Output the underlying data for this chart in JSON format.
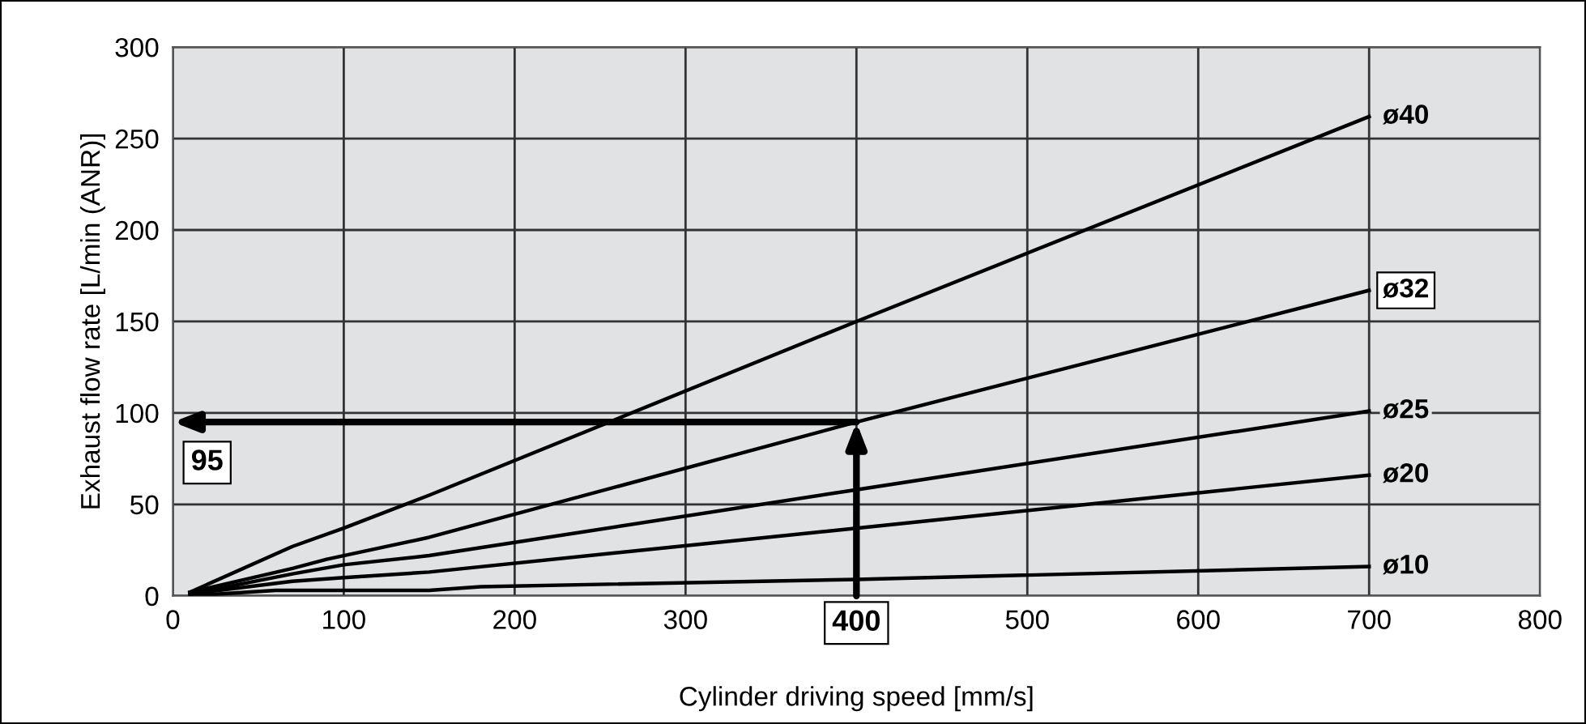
{
  "chart_data": {
    "type": "line",
    "xlabel": "Cylinder driving speed [mm/s]",
    "ylabel": "Exhaust flow rate [L/min (ANR)]",
    "xlim": [
      0,
      800
    ],
    "ylim": [
      0,
      300
    ],
    "xticks": [
      0,
      100,
      200,
      300,
      400,
      500,
      600,
      700,
      800
    ],
    "yticks": [
      0,
      50,
      100,
      150,
      200,
      250,
      300
    ],
    "grid": true,
    "legend": false,
    "marker": "none",
    "line_style": "solid",
    "series": [
      {
        "name": "ø40",
        "color": "#000000",
        "x": [
          10,
          70,
          100,
          150,
          400,
          700
        ],
        "values": [
          2,
          27,
          37,
          55,
          150,
          262
        ]
      },
      {
        "name": "ø32",
        "color": "#000000",
        "x": [
          10,
          70,
          90,
          150,
          400,
          700
        ],
        "values": [
          2,
          15,
          20,
          32,
          95,
          167
        ]
      },
      {
        "name": "ø25",
        "color": "#000000",
        "x": [
          10,
          70,
          100,
          150,
          400,
          700
        ],
        "values": [
          1,
          12,
          17,
          22,
          58,
          101
        ]
      },
      {
        "name": "ø20",
        "color": "#000000",
        "x": [
          10,
          70,
          100,
          150,
          400,
          700
        ],
        "values": [
          1,
          8,
          10,
          13,
          37,
          66
        ]
      },
      {
        "name": "ø10",
        "color": "#000000",
        "x": [
          10,
          60,
          150,
          180,
          400,
          700
        ],
        "values": [
          0,
          3,
          3,
          5,
          9,
          16
        ]
      }
    ],
    "annotations": [
      {
        "text": "95",
        "x": 400,
        "y": 95
      }
    ]
  }
}
